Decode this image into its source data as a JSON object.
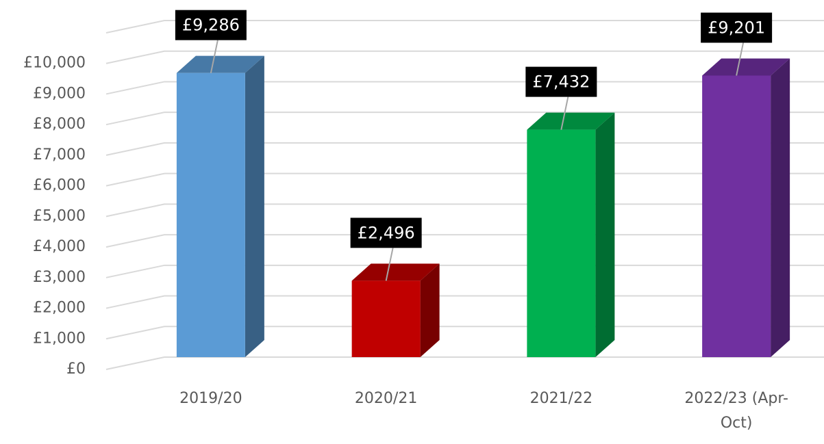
{
  "chart_data": {
    "type": "bar3d",
    "categories": [
      "2019/20",
      "2020/21",
      "2021/22",
      "2022/23 (Apr-Oct)"
    ],
    "values": [
      9286,
      2496,
      7432,
      9201
    ],
    "value_labels": [
      "£9,286",
      "£2,496",
      "£7,432",
      "£9,201"
    ],
    "colors": [
      "#5b9bd5",
      "#c00000",
      "#00b050",
      "#7030a0"
    ],
    "ylim": [
      0,
      11000
    ],
    "yticks": [
      {
        "value": 0,
        "label": "£0"
      },
      {
        "value": 1000,
        "label": "£1,000"
      },
      {
        "value": 2000,
        "label": "£2,000"
      },
      {
        "value": 3000,
        "label": "£3,000"
      },
      {
        "value": 4000,
        "label": "£4,000"
      },
      {
        "value": 5000,
        "label": "£5,000"
      },
      {
        "value": 6000,
        "label": "£6,000"
      },
      {
        "value": 7000,
        "label": "£7,000"
      },
      {
        "value": 8000,
        "label": "£8,000"
      },
      {
        "value": 9000,
        "label": "£9,000"
      },
      {
        "value": 10000,
        "label": "£10,000"
      }
    ],
    "grid": true
  }
}
